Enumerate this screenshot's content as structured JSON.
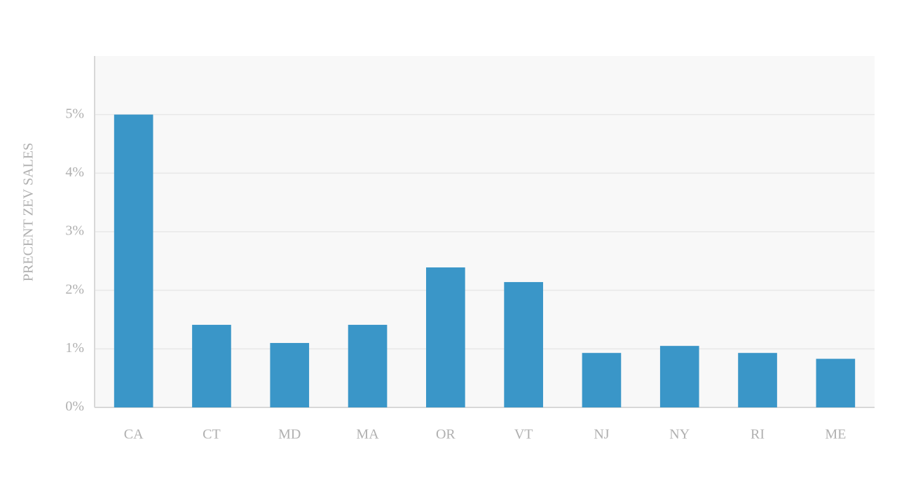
{
  "chart_data": {
    "type": "bar",
    "y_label": "PRECENT ZEV SALES",
    "categories": [
      "CA",
      "CT",
      "MD",
      "MA",
      "OR",
      "VT",
      "NJ",
      "NY",
      "RI",
      "ME"
    ],
    "values": [
      5.0,
      1.41,
      1.1,
      1.41,
      2.39,
      2.14,
      0.93,
      1.05,
      0.93,
      0.83
    ],
    "color": "#3a96c8",
    "ylim": [
      0,
      6
    ],
    "yticks": [
      {
        "value": 0,
        "label": "0%"
      },
      {
        "value": 1,
        "label": "1%"
      },
      {
        "value": 2,
        "label": "2%"
      },
      {
        "value": 3,
        "label": "3%"
      },
      {
        "value": 4,
        "label": "4%"
      },
      {
        "value": 5,
        "label": "5%"
      }
    ],
    "grid": true
  }
}
